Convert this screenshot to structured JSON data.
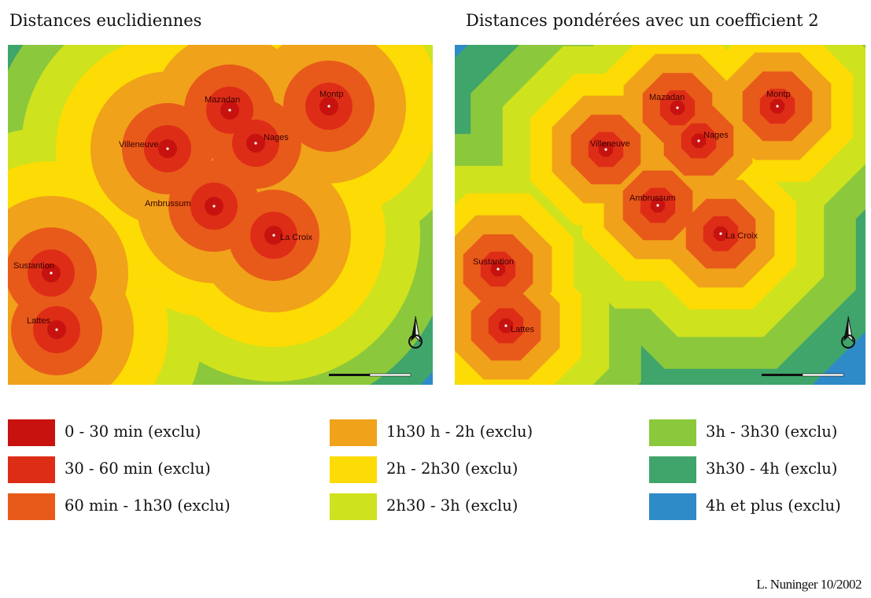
{
  "maps": {
    "left": {
      "title": "Distances euclidiennes"
    },
    "right": {
      "title": "Distances pondérées avec un coefficient 2"
    }
  },
  "towns": [
    {
      "key": "mazadan",
      "name": "Mazadan"
    },
    {
      "key": "montp",
      "name": "Montp"
    },
    {
      "key": "villeneuve",
      "name": "Villeneuve"
    },
    {
      "key": "nages",
      "name": "Nages"
    },
    {
      "key": "ambrussum",
      "name": "Ambrussum"
    },
    {
      "key": "lacroix",
      "name": "La Croix"
    },
    {
      "key": "substantion",
      "name": "Sustantion"
    },
    {
      "key": "lattes",
      "name": "Lattes"
    }
  ],
  "legend": [
    {
      "label": "0 - 30 min (exclu)",
      "color": "#c8120f"
    },
    {
      "label": "30 - 60 min (exclu)",
      "color": "#de2d17"
    },
    {
      "label": "60 min - 1h30 (exclu)",
      "color": "#e85a1a"
    },
    {
      "label": "1h30 h - 2h (exclu)",
      "color": "#f0a21a"
    },
    {
      "label": "2h - 2h30 (exclu)",
      "color": "#fddb04"
    },
    {
      "label": "2h30 - 3h (exclu)",
      "color": "#cfe21e"
    },
    {
      "label": "3h - 3h30 (exclu)",
      "color": "#8cc83c"
    },
    {
      "label": "3h30 - 4h (exclu)",
      "color": "#3fa56a"
    },
    {
      "label": "4h et plus (exclu)",
      "color": "#2f8ac8"
    }
  ],
  "credit": "L. Nuninger 10/2002"
}
